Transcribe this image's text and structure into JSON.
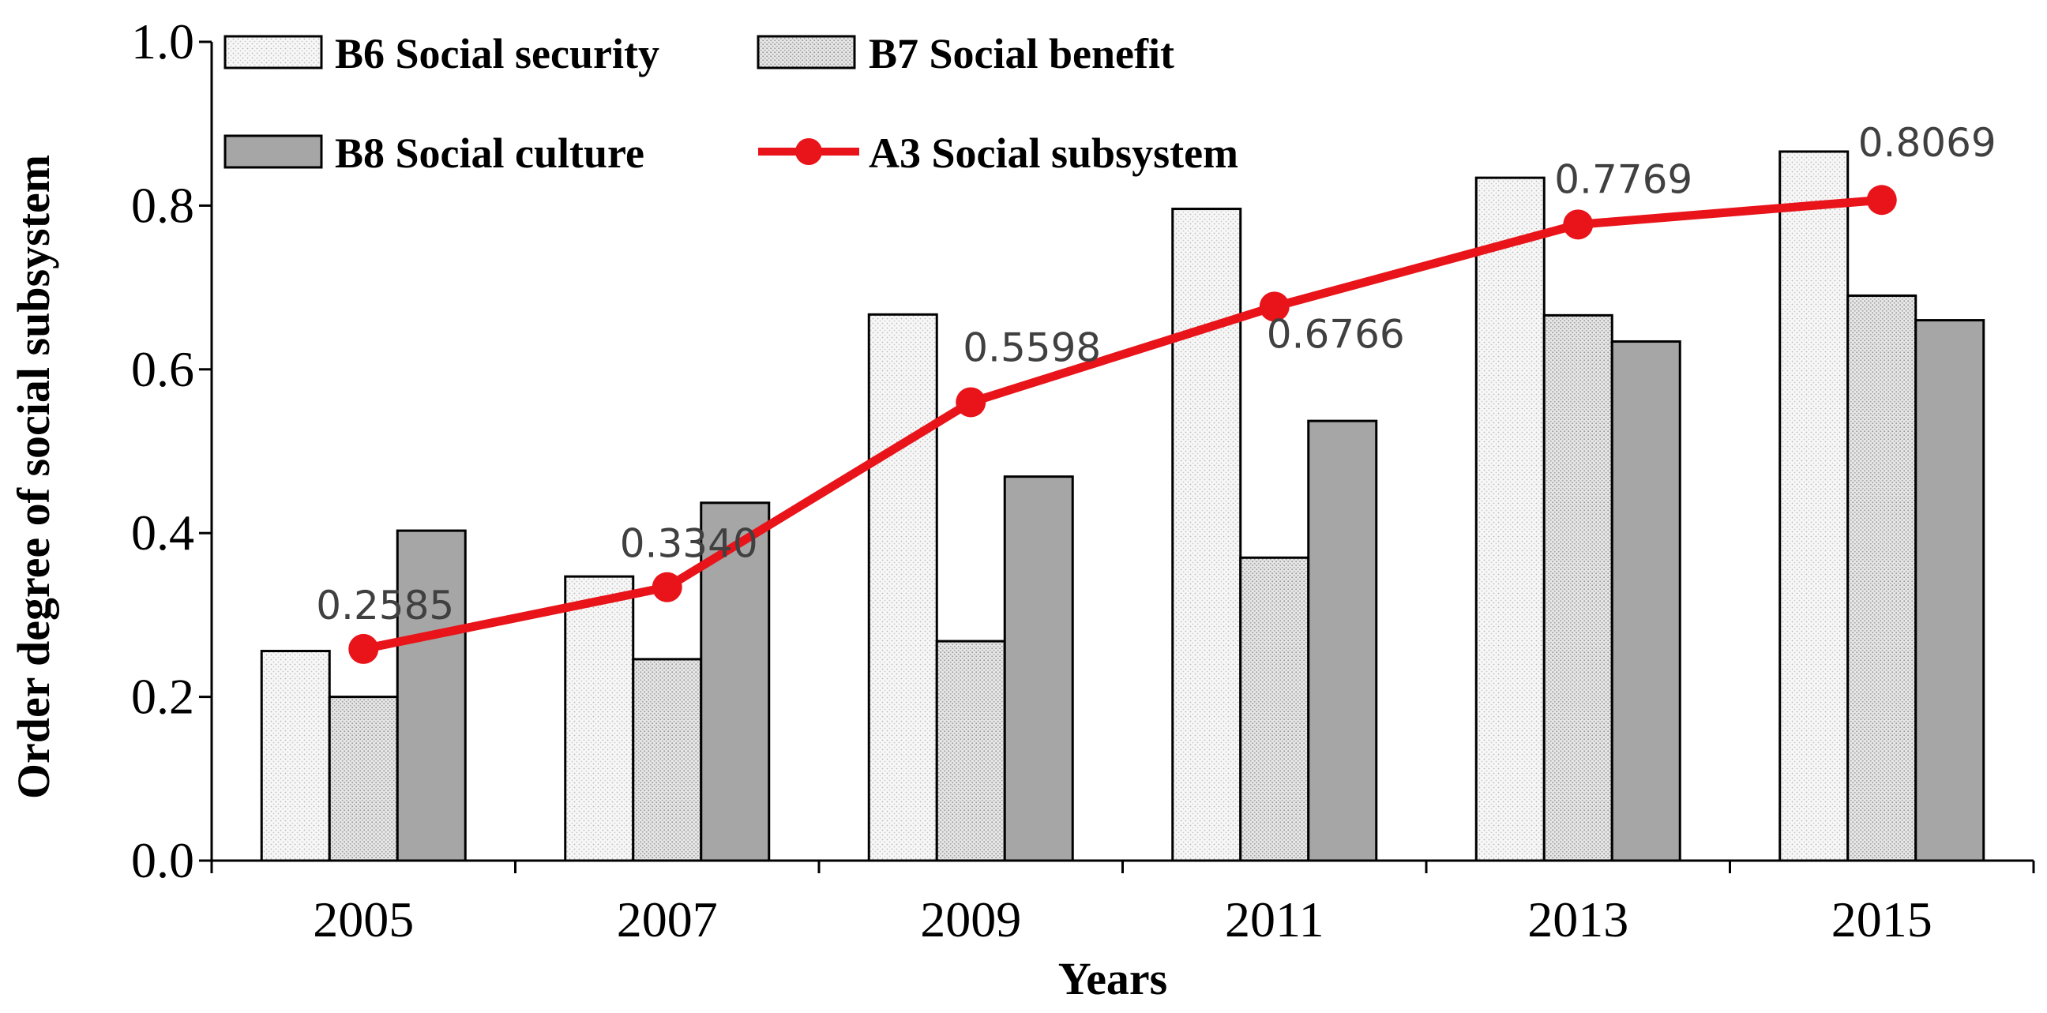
{
  "chart_data": {
    "type": "bar",
    "title": "",
    "xlabel": "Years",
    "ylabel": "Order degree of social subsystem",
    "categories": [
      "2005",
      "2007",
      "2009",
      "2011",
      "2013",
      "2015"
    ],
    "ylim": [
      0,
      1.0
    ],
    "yticks": [
      "0.0",
      "0.2",
      "0.4",
      "0.6",
      "0.8",
      "1.0"
    ],
    "series": [
      {
        "name": "B6 Social security",
        "kind": "bar",
        "fill": "#f4f4f4",
        "pattern": "dots-light",
        "values": [
          0.256,
          0.347,
          0.667,
          0.796,
          0.834,
          0.866
        ]
      },
      {
        "name": "B7 Social benefit",
        "kind": "bar",
        "fill": "#e6e6e6",
        "pattern": "dots-dense",
        "values": [
          0.2,
          0.246,
          0.268,
          0.37,
          0.666,
          0.69
        ]
      },
      {
        "name": "B8 Social culture",
        "kind": "bar",
        "fill": "#a6a6a6",
        "pattern": "solid",
        "values": [
          0.403,
          0.437,
          0.469,
          0.537,
          0.634,
          0.66
        ]
      },
      {
        "name": "A3 Social subsystem",
        "kind": "line",
        "color": "#e8141a",
        "values": [
          0.2585,
          0.334,
          0.5598,
          0.6766,
          0.7769,
          0.8069
        ],
        "labels": [
          "0.2585",
          "0.3340",
          "0.5598",
          "0.6766",
          "0.7769",
          "0.8069"
        ]
      }
    ],
    "legend": "top-left",
    "grid": false
  }
}
